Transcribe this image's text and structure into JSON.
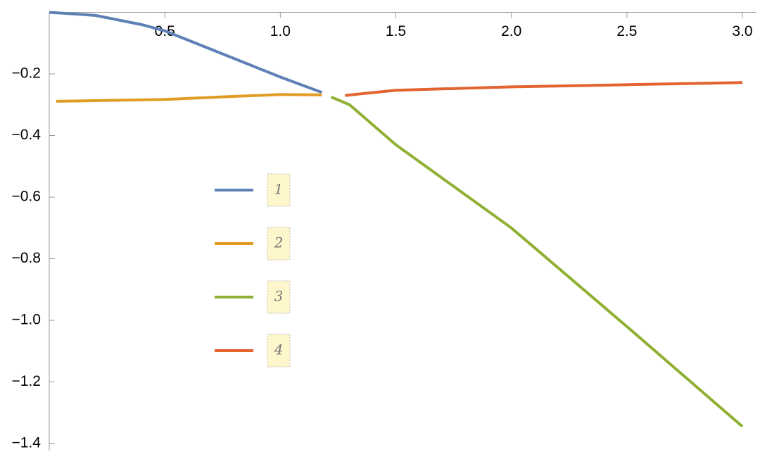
{
  "chart_data": {
    "type": "line",
    "xlim": [
      0,
      3
    ],
    "ylim": [
      -1.4,
      0
    ],
    "xticks": [
      0.5,
      {
        "value": 1,
        "label": "1.0"
      },
      1.5,
      {
        "value": 2,
        "label": "2.0"
      },
      2.5,
      {
        "value": 3,
        "label": "3.0"
      }
    ],
    "yticks": [
      {
        "value": -0.2,
        "label": "−0.2"
      },
      {
        "value": -0.4,
        "label": "−0.4"
      },
      {
        "value": -0.6,
        "label": "−0.6"
      },
      {
        "value": -0.8,
        "label": "−0.8"
      },
      {
        "value": -1,
        "label": "−1.0"
      },
      {
        "value": -1.2,
        "label": "−1.2"
      },
      {
        "value": -1.4,
        "label": "−1.4"
      }
    ],
    "series": [
      {
        "name": "1",
        "color": "#5e81b5",
        "x": [
          0,
          0.2,
          0.4,
          0.5,
          0.8,
          1.0,
          1.18
        ],
        "values": [
          0,
          -0.01,
          -0.04,
          -0.06,
          -0.15,
          -0.21,
          -0.26
        ]
      },
      {
        "name": "2",
        "color": "#e19c24",
        "x": [
          0.03,
          0.5,
          0.8,
          1.0,
          1.18
        ],
        "values": [
          -0.289,
          -0.283,
          -0.273,
          -0.267,
          -0.268
        ]
      },
      {
        "name": "3",
        "color": "#8fb032",
        "x": [
          1.22,
          1.3,
          1.5,
          2.0,
          2.5,
          3.0
        ],
        "values": [
          -0.275,
          -0.3,
          -0.43,
          -0.7,
          -1.02,
          -1.345
        ]
      },
      {
        "name": "4",
        "color": "#e36430",
        "x": [
          1.28,
          1.5,
          2.0,
          2.5,
          3.0
        ],
        "values": [
          -0.27,
          -0.253,
          -0.242,
          -0.235,
          -0.228
        ]
      }
    ]
  }
}
